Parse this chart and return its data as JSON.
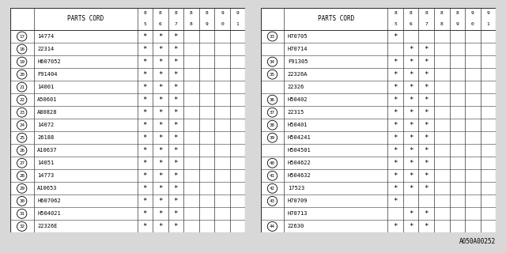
{
  "col_headers": [
    "85",
    "86",
    "87",
    "88",
    "89",
    "90",
    "91"
  ],
  "left_table": {
    "rows": [
      {
        "num": 17,
        "part": "14774",
        "marks": [
          1,
          1,
          1,
          0,
          0,
          0,
          0
        ],
        "shared": false
      },
      {
        "num": 18,
        "part": "22314",
        "marks": [
          1,
          1,
          1,
          0,
          0,
          0,
          0
        ],
        "shared": false
      },
      {
        "num": 19,
        "part": "H607052",
        "marks": [
          1,
          1,
          1,
          0,
          0,
          0,
          0
        ],
        "shared": false
      },
      {
        "num": 20,
        "part": "F91404",
        "marks": [
          1,
          1,
          1,
          0,
          0,
          0,
          0
        ],
        "shared": false
      },
      {
        "num": 21,
        "part": "14001",
        "marks": [
          1,
          1,
          1,
          0,
          0,
          0,
          0
        ],
        "shared": false
      },
      {
        "num": 22,
        "part": "A50601",
        "marks": [
          1,
          1,
          1,
          0,
          0,
          0,
          0
        ],
        "shared": false
      },
      {
        "num": 23,
        "part": "A80828",
        "marks": [
          1,
          1,
          1,
          0,
          0,
          0,
          0
        ],
        "shared": false
      },
      {
        "num": 24,
        "part": "14072",
        "marks": [
          1,
          1,
          1,
          0,
          0,
          0,
          0
        ],
        "shared": false
      },
      {
        "num": 25,
        "part": "26188",
        "marks": [
          1,
          1,
          1,
          0,
          0,
          0,
          0
        ],
        "shared": false
      },
      {
        "num": 26,
        "part": "A10637",
        "marks": [
          1,
          1,
          1,
          0,
          0,
          0,
          0
        ],
        "shared": false
      },
      {
        "num": 27,
        "part": "14051",
        "marks": [
          1,
          1,
          1,
          0,
          0,
          0,
          0
        ],
        "shared": false
      },
      {
        "num": 28,
        "part": "14773",
        "marks": [
          1,
          1,
          1,
          0,
          0,
          0,
          0
        ],
        "shared": false
      },
      {
        "num": 29,
        "part": "A10653",
        "marks": [
          1,
          1,
          1,
          0,
          0,
          0,
          0
        ],
        "shared": false
      },
      {
        "num": 30,
        "part": "H607062",
        "marks": [
          1,
          1,
          1,
          0,
          0,
          0,
          0
        ],
        "shared": false
      },
      {
        "num": 31,
        "part": "H504021",
        "marks": [
          1,
          1,
          1,
          0,
          0,
          0,
          0
        ],
        "shared": false
      },
      {
        "num": 32,
        "part": "22326E",
        "marks": [
          1,
          1,
          1,
          0,
          0,
          0,
          0
        ],
        "shared": false
      }
    ]
  },
  "right_table": {
    "rows": [
      {
        "num": 33,
        "part": "H70705",
        "marks": [
          1,
          0,
          0,
          0,
          0,
          0,
          0
        ],
        "shared": false
      },
      {
        "num": 33,
        "part": "H70714",
        "marks": [
          0,
          1,
          1,
          0,
          0,
          0,
          0
        ],
        "shared": true
      },
      {
        "num": 34,
        "part": "F91305",
        "marks": [
          1,
          1,
          1,
          0,
          0,
          0,
          0
        ],
        "shared": false
      },
      {
        "num": 35,
        "part": "22326A",
        "marks": [
          1,
          1,
          1,
          0,
          0,
          0,
          0
        ],
        "shared": false
      },
      {
        "num": 35,
        "part": "22326",
        "marks": [
          1,
          1,
          1,
          0,
          0,
          0,
          0
        ],
        "shared": true
      },
      {
        "num": 36,
        "part": "H50402",
        "marks": [
          1,
          1,
          1,
          0,
          0,
          0,
          0
        ],
        "shared": false
      },
      {
        "num": 37,
        "part": "22315",
        "marks": [
          1,
          1,
          1,
          0,
          0,
          0,
          0
        ],
        "shared": false
      },
      {
        "num": 38,
        "part": "H50401",
        "marks": [
          1,
          1,
          1,
          0,
          0,
          0,
          0
        ],
        "shared": false
      },
      {
        "num": 39,
        "part": "H504241",
        "marks": [
          1,
          1,
          1,
          0,
          0,
          0,
          0
        ],
        "shared": false
      },
      {
        "num": 39,
        "part": "H504501",
        "marks": [
          1,
          1,
          1,
          0,
          0,
          0,
          0
        ],
        "shared": true
      },
      {
        "num": 40,
        "part": "H504622",
        "marks": [
          1,
          1,
          1,
          0,
          0,
          0,
          0
        ],
        "shared": false
      },
      {
        "num": 41,
        "part": "H504632",
        "marks": [
          1,
          1,
          1,
          0,
          0,
          0,
          0
        ],
        "shared": false
      },
      {
        "num": 42,
        "part": "17523",
        "marks": [
          1,
          1,
          1,
          0,
          0,
          0,
          0
        ],
        "shared": false
      },
      {
        "num": 43,
        "part": "H70709",
        "marks": [
          1,
          0,
          0,
          0,
          0,
          0,
          0
        ],
        "shared": false
      },
      {
        "num": 43,
        "part": "H70713",
        "marks": [
          0,
          1,
          1,
          0,
          0,
          0,
          0
        ],
        "shared": true
      },
      {
        "num": 44,
        "part": "22630",
        "marks": [
          1,
          1,
          1,
          0,
          0,
          0,
          0
        ],
        "shared": false
      }
    ]
  },
  "footer": "A050A00252",
  "bg_color": "#d8d8d8",
  "table_bg": "#ffffff",
  "line_color": "#333333",
  "text_color": "#000000"
}
